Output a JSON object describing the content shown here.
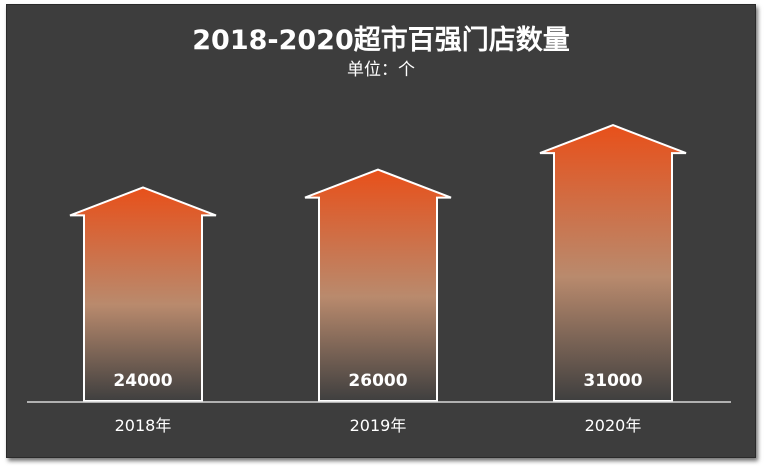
{
  "chart_data": {
    "type": "bar",
    "title": "2018-2020超市百强门店数量",
    "subtitle": "单位：个",
    "categories": [
      "2018年",
      "2019年",
      "2020年"
    ],
    "values": [
      24000,
      26000,
      31000
    ],
    "value_labels": [
      "24000",
      "26000",
      "31000"
    ],
    "ylim": [
      0,
      40000
    ],
    "grid": false,
    "legend": "none"
  },
  "colors": {
    "background": "#3d3d3d",
    "bar_top": "#e8501a",
    "bar_mid": "#b98a6d",
    "bar_bottom": "#3f3f3f",
    "outline": "#ffffff"
  }
}
